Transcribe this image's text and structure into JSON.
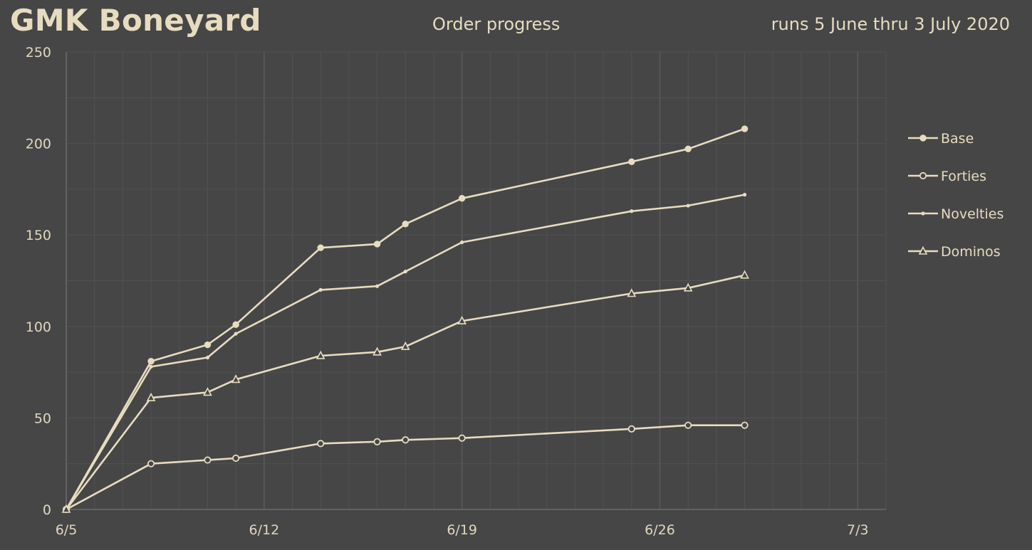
{
  "header": {
    "title": "GMK Boneyard",
    "subtitle": "Order progress",
    "date_range": "runs 5 June thru 3 July 2020"
  },
  "colors": {
    "background": "#464646",
    "line": "#e8dcc0",
    "grid_minor": "#525252",
    "grid_major": "#5c5c5c"
  },
  "chart_data": {
    "type": "line",
    "title": "Order progress",
    "x_tick_labels": [
      "6/5",
      "6/12",
      "6/19",
      "6/26",
      "7/3"
    ],
    "xlim": [
      "2020-06-05",
      "2020-07-03"
    ],
    "ylim": [
      0,
      250
    ],
    "y_ticks": [
      0,
      50,
      100,
      150,
      200,
      250
    ],
    "grid": true,
    "legend_position": "right",
    "x": [
      "2020-06-05",
      "2020-06-08",
      "2020-06-10",
      "2020-06-11",
      "2020-06-14",
      "2020-06-16",
      "2020-06-17",
      "2020-06-19",
      "2020-06-25",
      "2020-06-27",
      "2020-06-29"
    ],
    "series": [
      {
        "name": "Base",
        "marker": "filled-circle",
        "values": [
          0,
          81,
          90,
          101,
          143,
          145,
          156,
          170,
          190,
          197,
          208
        ]
      },
      {
        "name": "Forties",
        "marker": "open-circle",
        "values": [
          0,
          25,
          27,
          28,
          36,
          37,
          38,
          39,
          44,
          46,
          46
        ]
      },
      {
        "name": "Novelties",
        "marker": "small-dot",
        "values": [
          0,
          78,
          83,
          96,
          120,
          122,
          130,
          146,
          163,
          166,
          172
        ]
      },
      {
        "name": "Dominos",
        "marker": "open-triangle",
        "values": [
          0,
          61,
          64,
          71,
          84,
          86,
          89,
          103,
          118,
          121,
          128
        ]
      }
    ]
  }
}
